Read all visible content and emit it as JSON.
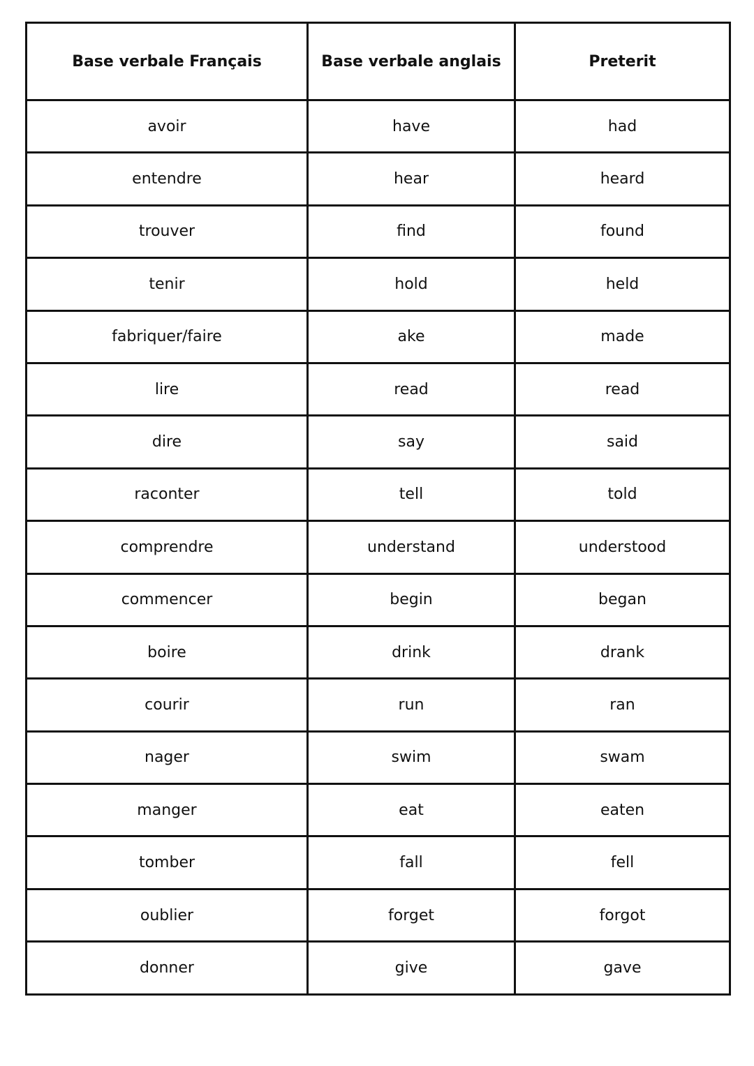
{
  "table": {
    "headers": [
      "Base verbale Français",
      "Base verbale anglais",
      "Preterit"
    ],
    "rows": [
      [
        "avoir",
        "have",
        "had"
      ],
      [
        "entendre",
        "hear",
        "heard"
      ],
      [
        "trouver",
        "find",
        "found"
      ],
      [
        "tenir",
        "hold",
        "held"
      ],
      [
        "fabriquer/faire",
        "ake",
        "made"
      ],
      [
        "lire",
        "read",
        "read"
      ],
      [
        "dire",
        "say",
        "said"
      ],
      [
        "raconter",
        "tell",
        "told"
      ],
      [
        "comprendre",
        "understand",
        "understood"
      ],
      [
        "commencer",
        "begin",
        "began"
      ],
      [
        "boire",
        "drink",
        "drank"
      ],
      [
        "courir",
        "run",
        "ran"
      ],
      [
        "nager",
        "swim",
        "swam"
      ],
      [
        "manger",
        "eat",
        "eaten"
      ],
      [
        "tomber",
        "fall",
        "fell"
      ],
      [
        "oublier",
        "forget",
        "forgot"
      ],
      [
        "donner",
        "give",
        "gave"
      ]
    ]
  }
}
